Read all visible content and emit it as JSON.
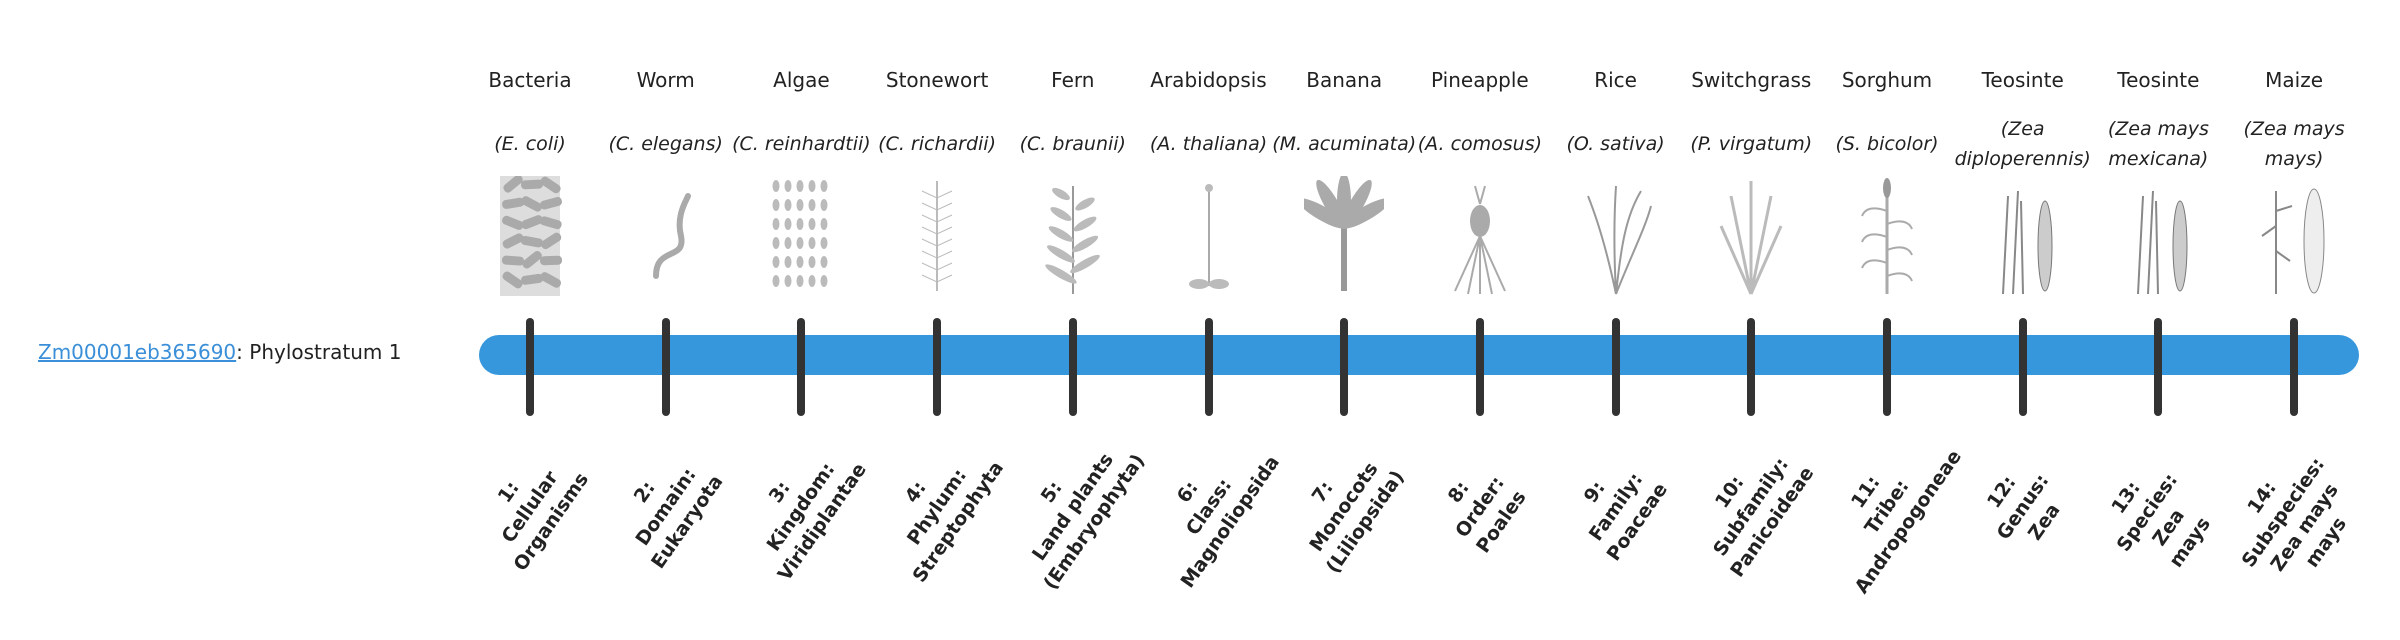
{
  "gene": {
    "id": "Zm00001eb365690",
    "label": "Phylostratum 1"
  },
  "colors": {
    "bar": "#3797dc",
    "tick": "#333333",
    "link": "#3a8fd8"
  },
  "strata": [
    {
      "common": "Bacteria",
      "species": "(E. coli)",
      "icon": "bacteria-icon",
      "rank": [
        "1:",
        "Cellular",
        "Organisms"
      ]
    },
    {
      "common": "Worm",
      "species": "(C. elegans)",
      "icon": "worm-icon",
      "rank": [
        "2:",
        "Domain:",
        "Eukaryota"
      ]
    },
    {
      "common": "Algae",
      "species": "(C. reinhardtii)",
      "icon": "algae-icon",
      "rank": [
        "3:",
        "Kingdom:",
        "Viridiplantae"
      ]
    },
    {
      "common": "Stonewort",
      "species": "(C. richardii)",
      "icon": "stonewort-icon",
      "rank": [
        "4:",
        "Phylum:",
        "Streptophyta"
      ]
    },
    {
      "common": "Fern",
      "species": "(C. braunii)",
      "icon": "fern-icon",
      "rank": [
        "5:",
        "Land plants",
        "(Embryophyta)"
      ]
    },
    {
      "common": "Arabidopsis",
      "species": "(A. thaliana)",
      "icon": "arabidopsis-icon",
      "rank": [
        "6:",
        "Class:",
        "Magnoliopsida"
      ]
    },
    {
      "common": "Banana",
      "species": "(M. acuminata)",
      "icon": "banana-icon",
      "rank": [
        "7:",
        "Monocots",
        "(Liliopsida)"
      ]
    },
    {
      "common": "Pineapple",
      "species": "(A. comosus)",
      "icon": "pineapple-icon",
      "rank": [
        "8:",
        "Order:",
        "Poales"
      ]
    },
    {
      "common": "Rice",
      "species": "(O. sativa)",
      "icon": "rice-icon",
      "rank": [
        "9:",
        "Family:",
        "Poaceae"
      ]
    },
    {
      "common": "Switchgrass",
      "species": "(P. virgatum)",
      "icon": "switchgrass-icon",
      "rank": [
        "10:",
        "Subfamily:",
        "Panicoideae"
      ]
    },
    {
      "common": "Sorghum",
      "species": "(S. bicolor)",
      "icon": "sorghum-icon",
      "rank": [
        "11:",
        "Tribe:",
        "Andropogoneae"
      ]
    },
    {
      "common": "Teosinte",
      "species": "(Zea diploperennis)",
      "icon": "teosinte-icon",
      "rank": [
        "12:",
        "Genus:",
        "Zea"
      ]
    },
    {
      "common": "Teosinte",
      "species": "(Zea mays mexicana)",
      "icon": "teosinte-icon",
      "rank": [
        "13:",
        "Species:",
        "Zea",
        "mays"
      ]
    },
    {
      "common": "Maize",
      "species": "(Zea mays mays)",
      "icon": "maize-icon",
      "rank": [
        "14:",
        "Subspecies:",
        "Zea mays",
        "mays"
      ]
    }
  ]
}
